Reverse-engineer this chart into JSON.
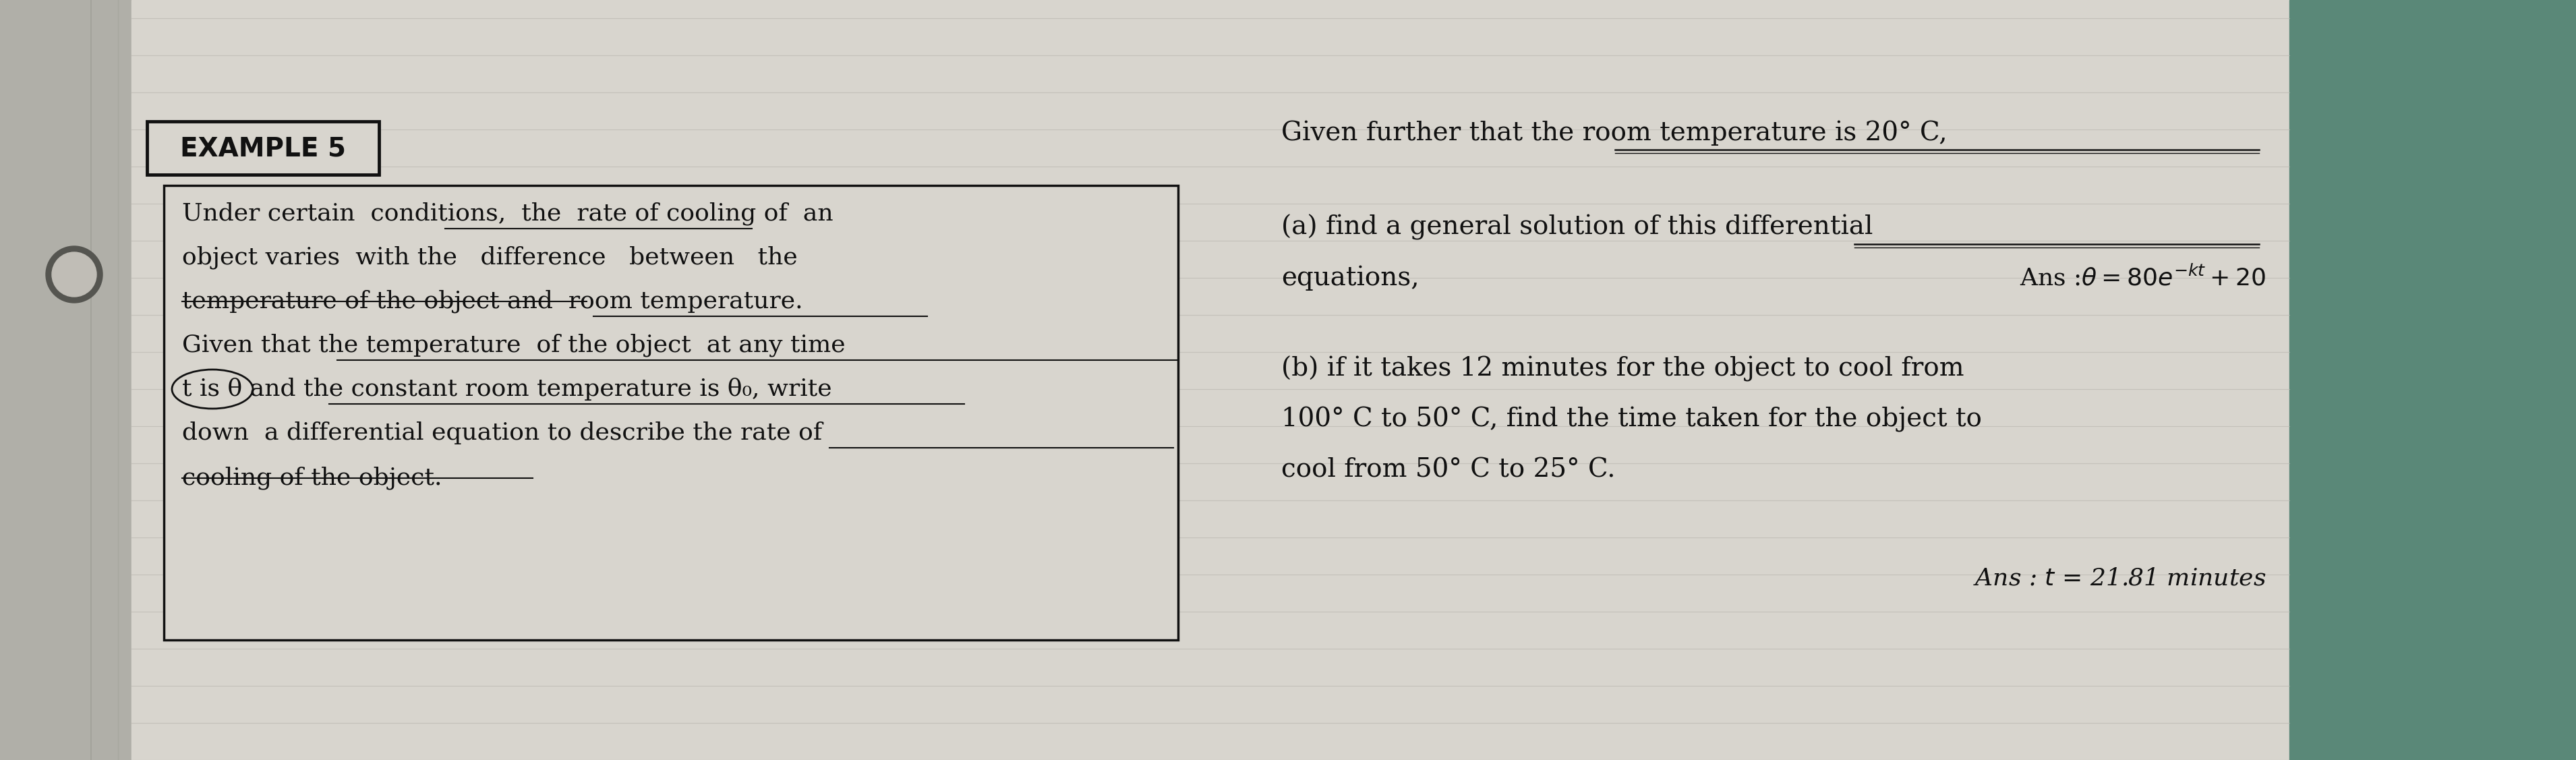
{
  "bg_color": "#c8c8c0",
  "left_bg": "#c5c5bc",
  "page_color": "#dedad4",
  "right_bg": "#d5d5cc",
  "teal_bg": "#4a8080",
  "title": "EXAMPLE 5",
  "title_fontsize": 28,
  "box_lines": [
    "Under certain  conditions,  the  rate of cooling of  an",
    "object varies  with the   difference   between   the",
    "temperature of the object and  room temperature.",
    "Given that the temperature  of the object  at any time",
    "t is θ and the constant room temperature is θ₀, write",
    "down  a differential equation to describe the rate of",
    "cooling of the object."
  ],
  "right_line1": "Given further that the room temperature is 20° C,",
  "right_line2a": "(a) find a general solution of this differential",
  "right_line2b": "equations,",
  "right_line3a": "(b) if it takes 12 minutes for the object to cool from",
  "right_line3b": "100° C to 50° C, find the time taken for the object to",
  "right_line3c": "cool from 50° C to 25° C.",
  "ans1": "Ans :θ = 80e⁻ᵏᵗ + 20",
  "ans2": "Ans : t = 21.81 minutes",
  "fs": 26,
  "fs_ans": 24
}
